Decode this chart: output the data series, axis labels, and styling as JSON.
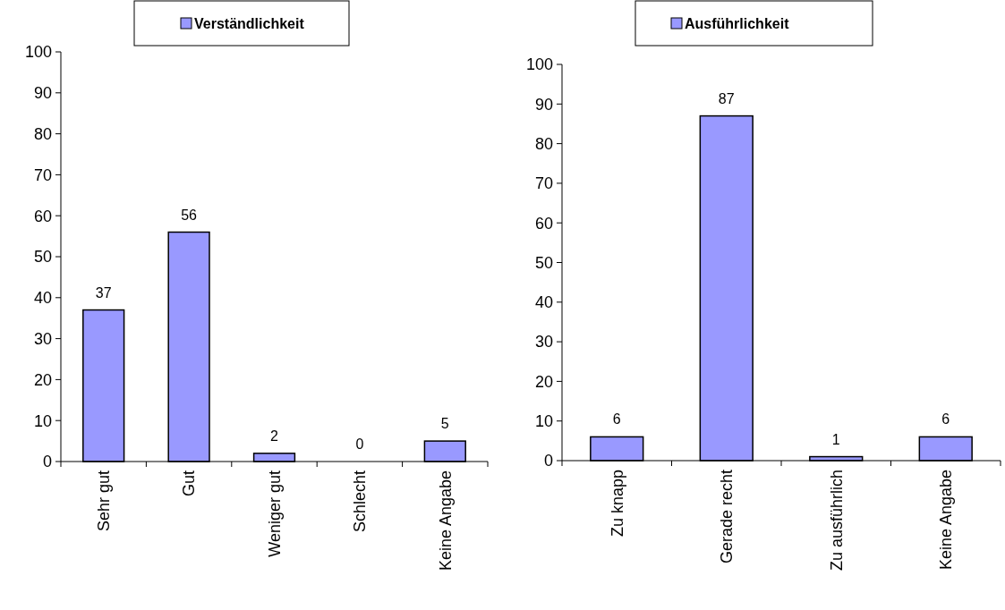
{
  "chart_data": [
    {
      "type": "bar",
      "categories": [
        "Sehr gut",
        "Gut",
        "Weniger gut",
        "Schlecht",
        "Keine Angabe"
      ],
      "series": [
        {
          "name": "Verständlichkeit",
          "color": "#9999ff",
          "values": [
            37,
            56,
            2,
            0,
            5
          ]
        }
      ],
      "ylim": [
        0,
        100
      ],
      "yticks": [
        0,
        10,
        20,
        30,
        40,
        50,
        60,
        70,
        80,
        90,
        100
      ],
      "data_labels": true,
      "legend": "top",
      "grid": false
    },
    {
      "type": "bar",
      "categories": [
        "Zu knapp",
        "Gerade recht",
        "Zu ausführlich",
        "Keine Angabe"
      ],
      "series": [
        {
          "name": "Ausführlichkeit",
          "color": "#9999ff",
          "values": [
            6,
            87,
            1,
            6
          ]
        }
      ],
      "ylim": [
        0,
        100
      ],
      "yticks": [
        0,
        10,
        20,
        30,
        40,
        50,
        60,
        70,
        80,
        90,
        100
      ],
      "data_labels": true,
      "legend": "top",
      "grid": false
    }
  ]
}
